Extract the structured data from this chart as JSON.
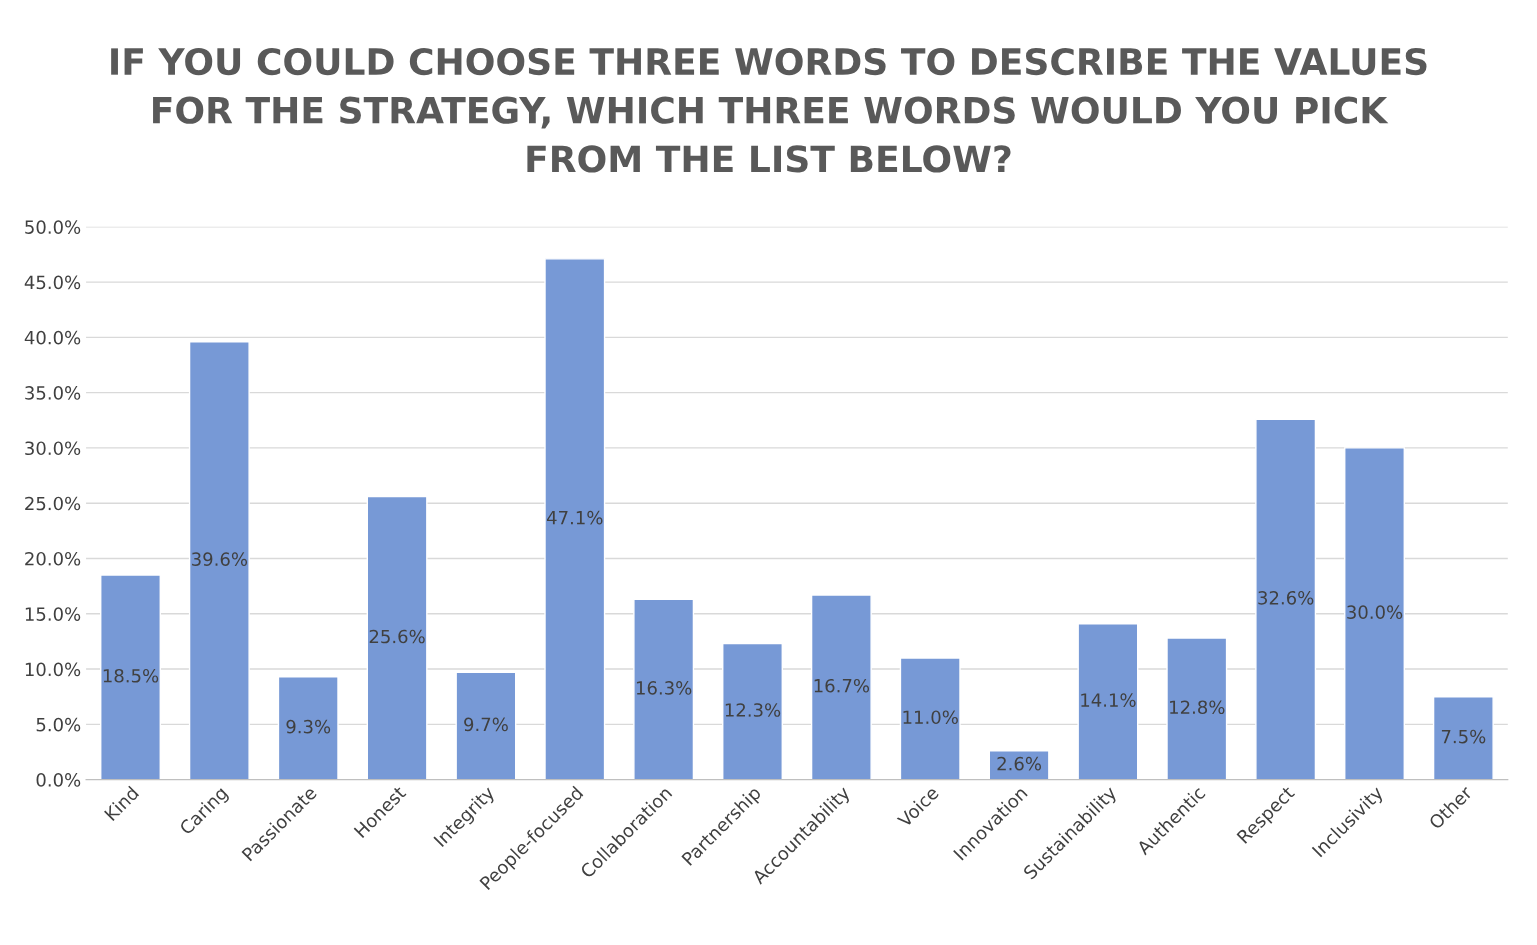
{
  "chart_data": {
    "type": "bar",
    "title": "IF YOU COULD CHOOSE THREE WORDS TO DESCRIBE THE VALUES\nFOR THE STRATEGY, WHICH THREE WORDS WOULD YOU PICK\nFROM THE LIST BELOW?",
    "categories": [
      "Kind",
      "Caring",
      "Passionate",
      "Honest",
      "Integrity",
      "People-focused",
      "Collaboration",
      "Partnership",
      "Accountability",
      "Voice",
      "Innovation",
      "Sustainability",
      "Authentic",
      "Respect",
      "Inclusivity",
      "Other"
    ],
    "values": [
      18.5,
      39.6,
      9.3,
      25.6,
      9.7,
      47.1,
      16.3,
      12.3,
      16.7,
      11.0,
      2.6,
      14.1,
      12.8,
      32.6,
      30.0,
      7.5
    ],
    "value_labels": [
      "18.5%",
      "39.6%",
      "9.3%",
      "25.6%",
      "9.7%",
      "47.1%",
      "16.3%",
      "12.3%",
      "16.7%",
      "11.0%",
      "2.6%",
      "14.1%",
      "12.8%",
      "32.6%",
      "30.0%",
      "7.5%"
    ],
    "color": "#7799d6",
    "ylim": [
      0,
      50
    ],
    "yticks": [
      {
        "value": 0,
        "label": "0.0%"
      },
      {
        "value": 5,
        "label": "5.0%"
      },
      {
        "value": 10,
        "label": "10.0%"
      },
      {
        "value": 15,
        "label": "15.0%"
      },
      {
        "value": 20,
        "label": "20.0%"
      },
      {
        "value": 25,
        "label": "25.0%"
      },
      {
        "value": 30,
        "label": "30.0%"
      },
      {
        "value": 35,
        "label": "35.0%"
      },
      {
        "value": 40,
        "label": "40.0%"
      },
      {
        "value": 45,
        "label": "45.0%"
      },
      {
        "value": 50,
        "label": "50.0%"
      }
    ],
    "grid": "y"
  }
}
